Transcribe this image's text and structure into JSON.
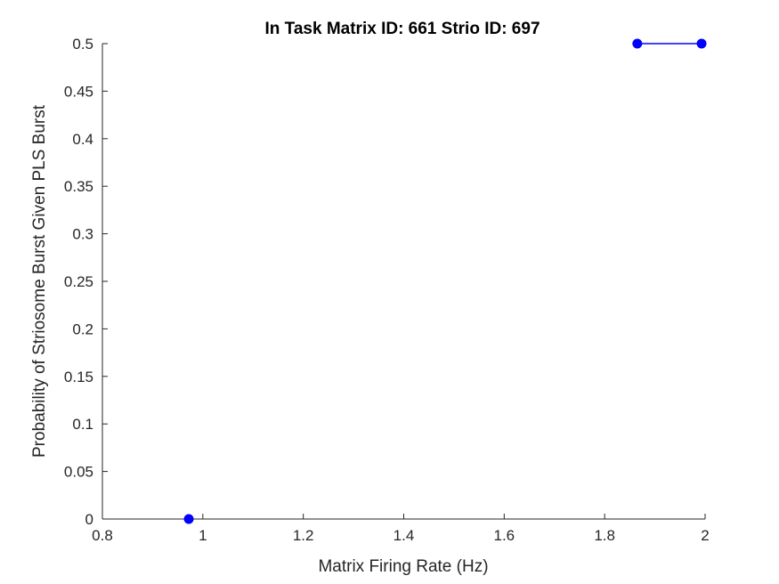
{
  "chart_data": {
    "type": "line",
    "title": "In Task Matrix ID: 661 Strio ID: 697",
    "xlabel": "Matrix Firing Rate (Hz)",
    "ylabel": "Probability of Striosome Burst Given PLS Burst",
    "xlim": [
      0.8,
      2
    ],
    "ylim": [
      0,
      0.5
    ],
    "x_ticks": [
      "0.8",
      "1",
      "1.2",
      "1.4",
      "1.6",
      "1.8",
      "2"
    ],
    "y_ticks": [
      "0",
      "0.05",
      "0.1",
      "0.15",
      "0.2",
      "0.25",
      "0.3",
      "0.35",
      "0.4",
      "0.45",
      "0.5"
    ],
    "grid": false,
    "box": false,
    "series": [
      {
        "color": "#0000ff",
        "marker": "circle",
        "segments": [
          [
            {
              "x": 0.972,
              "y": 0
            }
          ],
          [
            {
              "x": 1.865,
              "y": 0.5
            },
            {
              "x": 1.993,
              "y": 0.5
            }
          ]
        ]
      }
    ]
  }
}
